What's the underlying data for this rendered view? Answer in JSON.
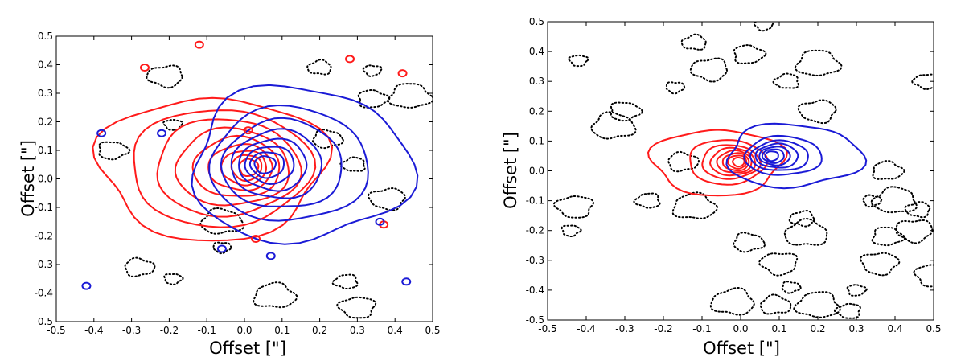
{
  "chart_data": [
    {
      "type": "contour",
      "xlabel": "Offset [\"]",
      "ylabel": "Offset [\"]",
      "xlim": [
        -0.5,
        0.5
      ],
      "ylim": [
        -0.5,
        0.5
      ],
      "x_ticks": [
        -0.5,
        -0.4,
        -0.3,
        -0.2,
        -0.1,
        0.0,
        0.1,
        0.2,
        0.3,
        0.4,
        0.5
      ],
      "y_ticks": [
        -0.5,
        -0.4,
        -0.3,
        -0.2,
        -0.1,
        0.0,
        0.1,
        0.2,
        0.3,
        0.4,
        0.5
      ],
      "grid": false,
      "colors": {
        "red": "#ff1a1a",
        "blue": "#1a1ad6",
        "negative": "#000000"
      },
      "red_center": [
        0.02,
        0.04
      ],
      "red_levels": [
        {
          "rx": 0.3,
          "ry": 0.25
        },
        {
          "rx": 0.24,
          "ry": 0.205
        },
        {
          "rx": 0.19,
          "ry": 0.17
        },
        {
          "rx": 0.15,
          "ry": 0.135
        },
        {
          "rx": 0.115,
          "ry": 0.105
        },
        {
          "rx": 0.085,
          "ry": 0.08
        },
        {
          "rx": 0.06,
          "ry": 0.06
        },
        {
          "rx": 0.04,
          "ry": 0.045
        },
        {
          "rx": 0.025,
          "ry": 0.03
        }
      ],
      "blue_center": [
        0.045,
        0.05
      ],
      "blue_levels": [
        {
          "rx": 0.29,
          "ry": 0.27
        },
        {
          "rx": 0.21,
          "ry": 0.2
        },
        {
          "rx": 0.16,
          "ry": 0.155
        },
        {
          "rx": 0.12,
          "ry": 0.12
        },
        {
          "rx": 0.09,
          "ry": 0.09
        },
        {
          "rx": 0.065,
          "ry": 0.065
        },
        {
          "rx": 0.045,
          "ry": 0.045
        },
        {
          "rx": 0.028,
          "ry": 0.03
        }
      ],
      "red_blobs": [
        [
          -0.265,
          0.39
        ],
        [
          -0.12,
          0.47
        ],
        [
          0.01,
          0.17
        ],
        [
          0.28,
          0.42
        ],
        [
          0.42,
          0.37
        ],
        [
          0.37,
          -0.16
        ],
        [
          0.03,
          -0.21
        ]
      ],
      "blue_blobs": [
        [
          -0.42,
          -0.375
        ],
        [
          -0.38,
          0.16
        ],
        [
          -0.22,
          0.16
        ],
        [
          0.07,
          -0.27
        ],
        [
          0.36,
          -0.15
        ],
        [
          0.43,
          -0.36
        ],
        [
          -0.06,
          -0.245
        ]
      ],
      "negative_blobs": [
        [
          -0.19,
          0.19
        ],
        [
          -0.35,
          0.1
        ],
        [
          -0.06,
          -0.15
        ],
        [
          0.2,
          0.39
        ],
        [
          -0.21,
          0.36
        ],
        [
          0.34,
          0.38
        ],
        [
          0.34,
          0.28
        ],
        [
          0.44,
          0.29
        ],
        [
          0.29,
          0.05
        ],
        [
          0.38,
          -0.07
        ],
        [
          -0.06,
          -0.24
        ],
        [
          -0.28,
          -0.31
        ],
        [
          0.08,
          -0.41
        ],
        [
          0.27,
          -0.36
        ],
        [
          0.3,
          -0.45
        ],
        [
          -0.19,
          -0.35
        ],
        [
          0.22,
          0.14
        ]
      ]
    },
    {
      "type": "contour",
      "xlabel": "Offset [\"]",
      "ylabel": "Offset [\"]",
      "xlim": [
        -0.5,
        0.5
      ],
      "ylim": [
        -0.5,
        0.5
      ],
      "x_ticks": [
        -0.5,
        -0.4,
        -0.3,
        -0.2,
        -0.1,
        0.0,
        0.1,
        0.2,
        0.3,
        0.4,
        0.5
      ],
      "y_ticks": [
        -0.5,
        -0.4,
        -0.3,
        -0.2,
        -0.1,
        0.0,
        0.1,
        0.2,
        0.3,
        0.4,
        0.5
      ],
      "grid": false,
      "colors": {
        "red": "#ff1a1a",
        "blue": "#1a1ad6",
        "negative": "#000000"
      },
      "red_center": [
        0.0,
        0.03
      ],
      "red_levels": [
        {
          "rx": 0.17,
          "ry": 0.11
        },
        {
          "rx": 0.1,
          "ry": 0.075
        },
        {
          "rx": 0.075,
          "ry": 0.057
        },
        {
          "rx": 0.058,
          "ry": 0.046
        },
        {
          "rx": 0.045,
          "ry": 0.037
        },
        {
          "rx": 0.034,
          "ry": 0.029
        },
        {
          "rx": 0.024,
          "ry": 0.022
        },
        {
          "rx": 0.015,
          "ry": 0.015
        }
      ],
      "blue_center": [
        0.075,
        0.05
      ],
      "blue_levels": [
        {
          "rx": 0.175,
          "ry": 0.105
        },
        {
          "rx": 0.1,
          "ry": 0.065
        },
        {
          "rx": 0.075,
          "ry": 0.05
        },
        {
          "rx": 0.055,
          "ry": 0.04
        },
        {
          "rx": 0.04,
          "ry": 0.031
        },
        {
          "rx": 0.028,
          "ry": 0.023
        },
        {
          "rx": 0.017,
          "ry": 0.016
        }
      ],
      "red_blobs": [],
      "blue_blobs": [],
      "negative_blobs": [
        [
          -0.42,
          0.37
        ],
        [
          -0.3,
          0.2
        ],
        [
          -0.33,
          0.15
        ],
        [
          -0.12,
          0.43
        ],
        [
          -0.08,
          0.34
        ],
        [
          0.06,
          0.49
        ],
        [
          0.02,
          0.39
        ],
        [
          0.2,
          0.36
        ],
        [
          0.12,
          0.3
        ],
        [
          0.2,
          0.2
        ],
        [
          -0.17,
          0.28
        ],
        [
          -0.15,
          0.03
        ],
        [
          -0.12,
          -0.12
        ],
        [
          -0.24,
          -0.1
        ],
        [
          -0.43,
          -0.12
        ],
        [
          -0.44,
          -0.2
        ],
        [
          0.02,
          -0.24
        ],
        [
          0.17,
          -0.21
        ],
        [
          0.16,
          -0.16
        ],
        [
          0.1,
          -0.31
        ],
        [
          0.3,
          -0.4
        ],
        [
          0.38,
          -0.22
        ],
        [
          0.4,
          -0.1
        ],
        [
          0.46,
          -0.13
        ],
        [
          0.45,
          -0.2
        ],
        [
          0.34,
          -0.1
        ],
        [
          0.38,
          0.0
        ],
        [
          0.2,
          -0.45
        ],
        [
          0.28,
          -0.47
        ],
        [
          0.36,
          -0.31
        ],
        [
          0.13,
          -0.39
        ],
        [
          0.09,
          -0.45
        ],
        [
          -0.02,
          -0.44
        ],
        [
          0.48,
          0.3
        ],
        [
          0.5,
          -0.35
        ]
      ]
    }
  ]
}
